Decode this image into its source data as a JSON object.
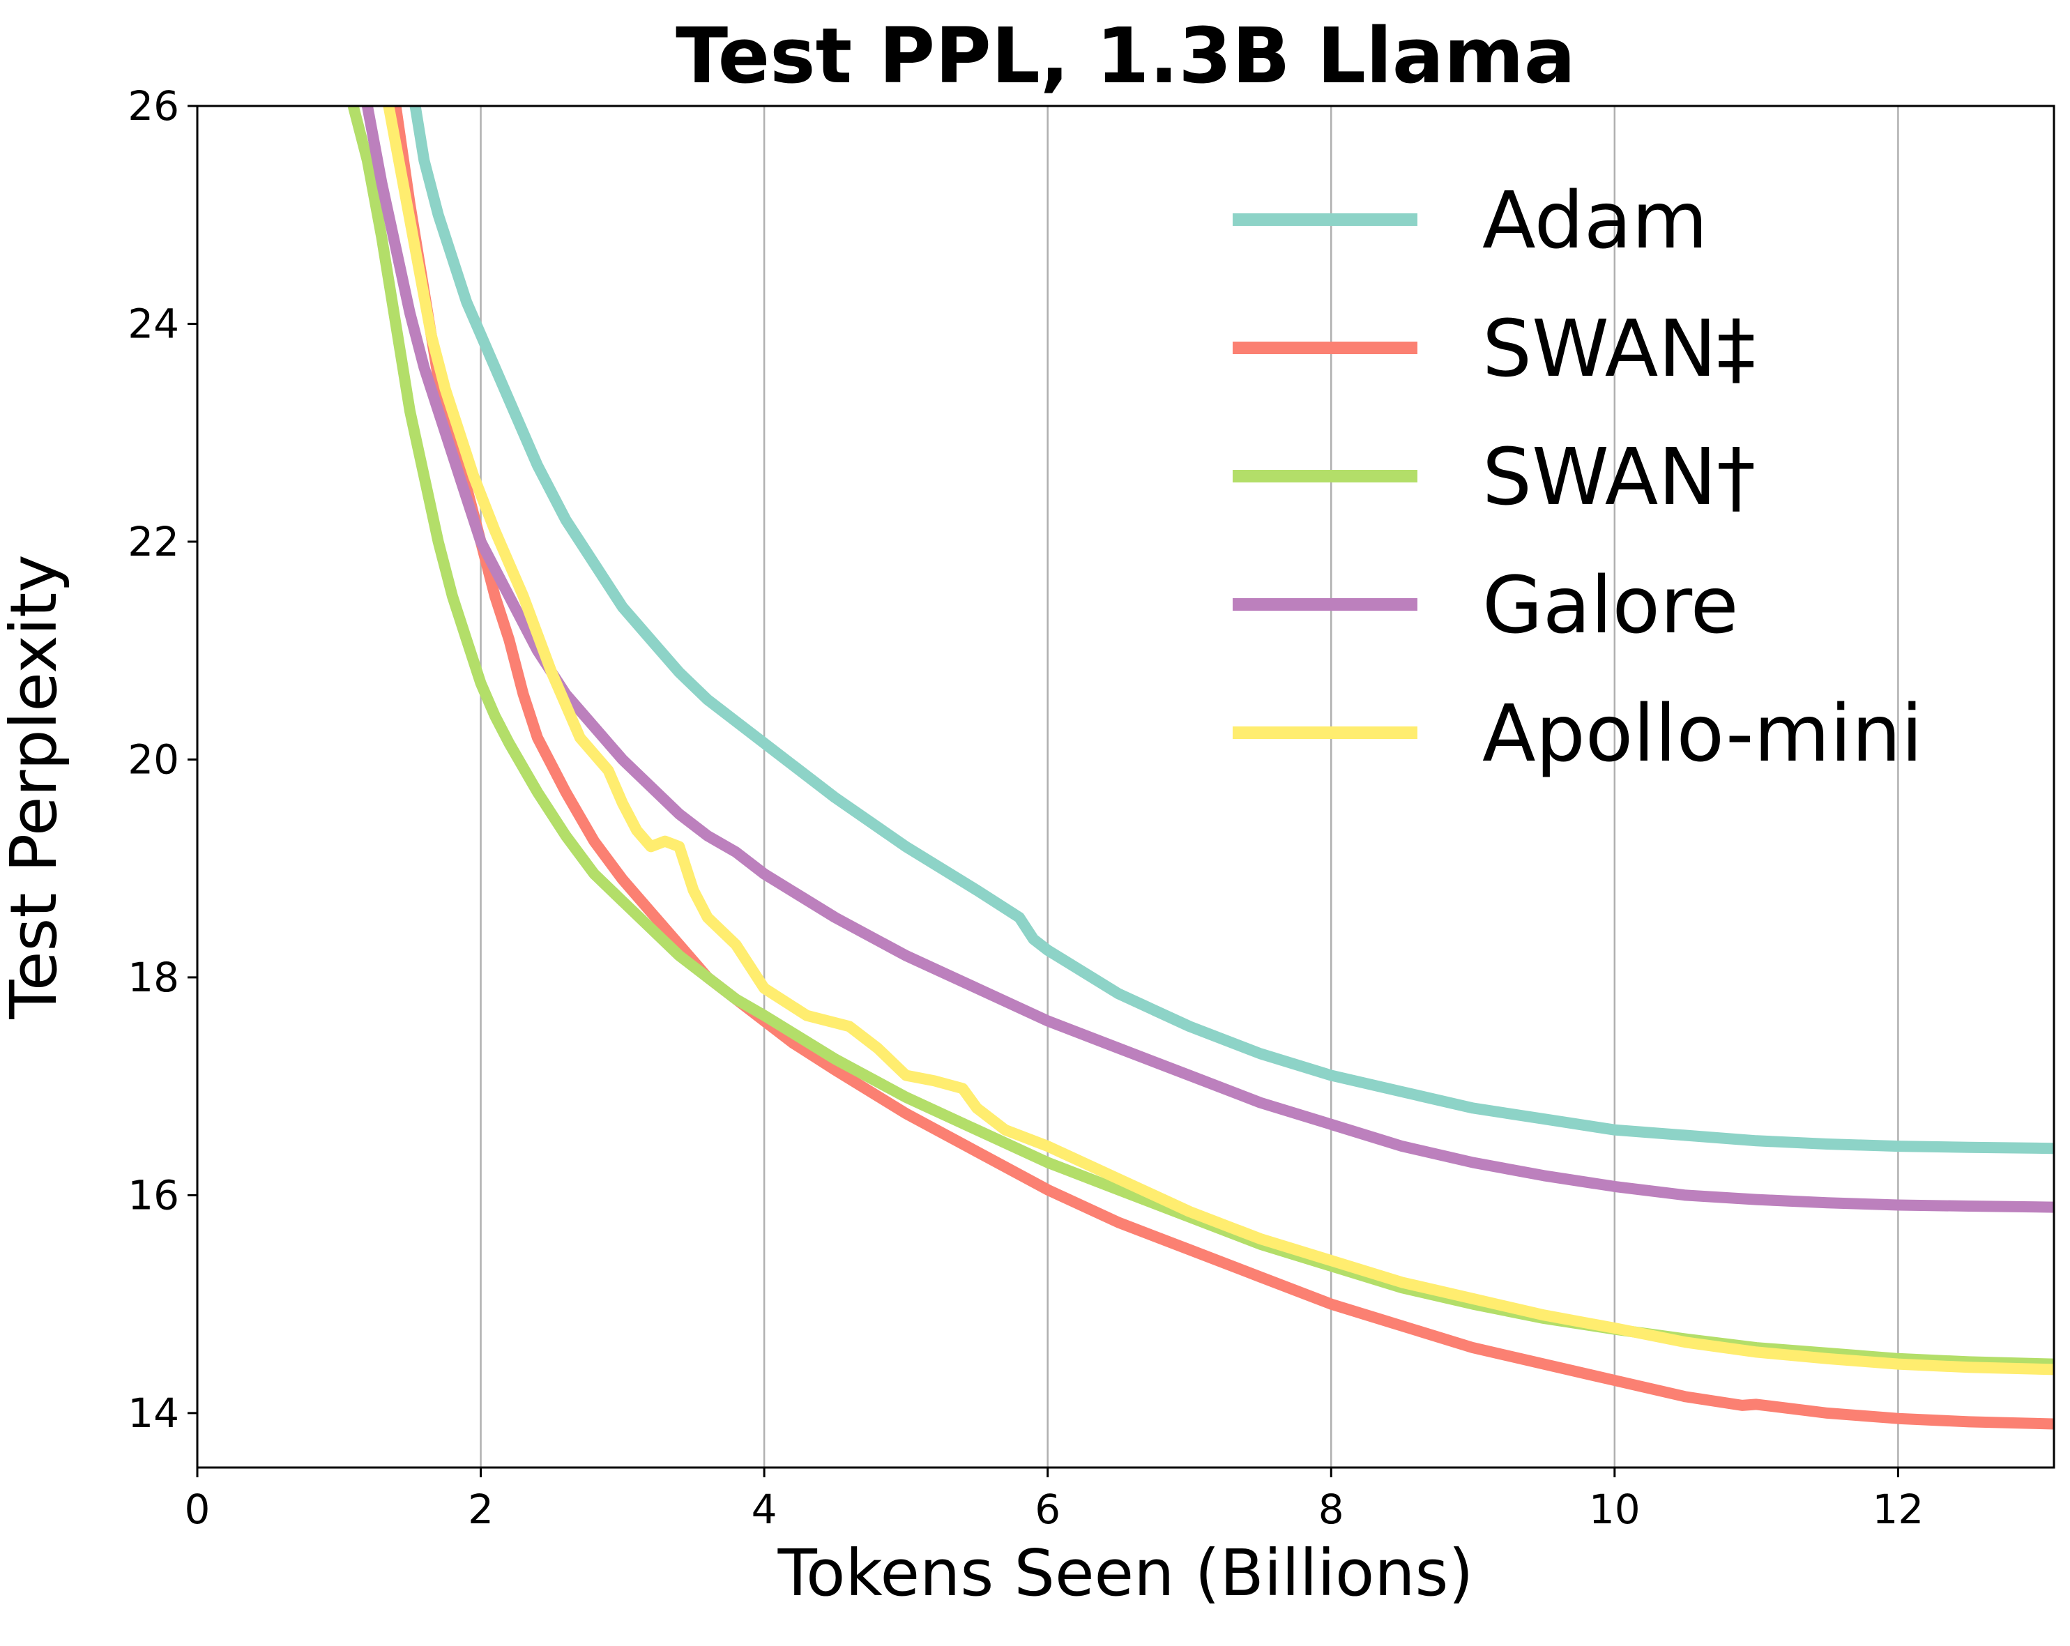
{
  "chart_data": {
    "type": "line",
    "title": "Test PPL, 1.3B Llama",
    "xlabel": "Tokens Seen (Billions)",
    "ylabel": "Test Perplexity",
    "xlim": [
      0,
      13.1
    ],
    "ylim": [
      13.5,
      26
    ],
    "xticks": [
      0,
      2,
      4,
      6,
      8,
      10,
      12
    ],
    "yticks": [
      14,
      16,
      18,
      20,
      22,
      24,
      26
    ],
    "grid": "vertical",
    "legend_position": "top-right",
    "series": [
      {
        "name": "Adam",
        "color": "#8dd3c7",
        "x": [
          1.5,
          1.6,
          1.7,
          1.8,
          1.9,
          2.0,
          2.2,
          2.4,
          2.6,
          2.8,
          3.0,
          3.2,
          3.4,
          3.6,
          3.8,
          4.0,
          4.5,
          5.0,
          5.5,
          5.8,
          5.85,
          5.9,
          6.0,
          6.5,
          7.0,
          7.5,
          8.0,
          8.5,
          9.0,
          9.5,
          10.0,
          10.5,
          11.0,
          11.5,
          12.0,
          12.5,
          13.1
        ],
        "values": [
          26.3,
          25.5,
          25.0,
          24.6,
          24.2,
          23.9,
          23.3,
          22.7,
          22.2,
          21.8,
          21.4,
          21.1,
          20.8,
          20.55,
          20.35,
          20.15,
          19.65,
          19.2,
          18.8,
          18.55,
          18.45,
          18.35,
          18.25,
          17.85,
          17.55,
          17.3,
          17.1,
          16.95,
          16.8,
          16.7,
          16.6,
          16.55,
          16.5,
          16.47,
          16.45,
          16.44,
          16.43
        ]
      },
      {
        "name": "SWAN‡",
        "color": "#fb8072",
        "x": [
          1.4,
          1.5,
          1.6,
          1.7,
          1.8,
          1.9,
          2.0,
          2.1,
          2.2,
          2.3,
          2.4,
          2.6,
          2.8,
          3.0,
          3.2,
          3.4,
          3.6,
          3.8,
          4.0,
          4.2,
          4.5,
          5.0,
          5.5,
          6.0,
          6.5,
          7.0,
          7.5,
          8.0,
          8.5,
          9.0,
          9.5,
          10.0,
          10.5,
          10.9,
          11.0,
          11.5,
          12.0,
          12.5,
          13.1
        ],
        "values": [
          26.0,
          25.1,
          24.3,
          23.5,
          23.0,
          22.5,
          22.0,
          21.5,
          21.1,
          20.6,
          20.2,
          19.7,
          19.25,
          18.9,
          18.6,
          18.3,
          18.0,
          17.8,
          17.6,
          17.4,
          17.15,
          16.75,
          16.4,
          16.05,
          15.75,
          15.5,
          15.25,
          15.0,
          14.8,
          14.6,
          14.45,
          14.3,
          14.15,
          14.07,
          14.08,
          14.0,
          13.95,
          13.92,
          13.9
        ]
      },
      {
        "name": "SWAN†",
        "color": "#b3de69",
        "x": [
          1.1,
          1.2,
          1.3,
          1.4,
          1.5,
          1.6,
          1.7,
          1.8,
          1.9,
          2.0,
          2.1,
          2.2,
          2.4,
          2.6,
          2.8,
          3.0,
          3.2,
          3.4,
          3.6,
          3.8,
          4.0,
          4.5,
          5.0,
          5.5,
          6.0,
          6.5,
          7.0,
          7.5,
          8.0,
          8.5,
          9.0,
          9.5,
          10.0,
          10.5,
          11.0,
          11.5,
          12.0,
          12.5,
          13.1
        ],
        "values": [
          26.0,
          25.5,
          24.8,
          24.0,
          23.2,
          22.6,
          22.0,
          21.5,
          21.1,
          20.7,
          20.4,
          20.15,
          19.7,
          19.3,
          18.95,
          18.7,
          18.45,
          18.2,
          18.0,
          17.8,
          17.65,
          17.25,
          16.9,
          16.6,
          16.3,
          16.05,
          15.8,
          15.55,
          15.35,
          15.15,
          15.0,
          14.87,
          14.77,
          14.68,
          14.6,
          14.55,
          14.5,
          14.47,
          14.45
        ]
      },
      {
        "name": "Galore",
        "color": "#bc80bd",
        "x": [
          1.2,
          1.3,
          1.4,
          1.5,
          1.6,
          1.7,
          1.8,
          1.9,
          2.0,
          2.2,
          2.4,
          2.6,
          2.8,
          3.0,
          3.2,
          3.4,
          3.6,
          3.8,
          4.0,
          4.5,
          5.0,
          5.5,
          6.0,
          6.5,
          7.0,
          7.5,
          8.0,
          8.5,
          9.0,
          9.5,
          10.0,
          10.5,
          11.0,
          11.5,
          12.0,
          12.5,
          13.1
        ],
        "values": [
          26.0,
          25.3,
          24.7,
          24.1,
          23.6,
          23.2,
          22.8,
          22.4,
          22.0,
          21.5,
          21.0,
          20.6,
          20.3,
          20.0,
          19.75,
          19.5,
          19.3,
          19.15,
          18.95,
          18.55,
          18.2,
          17.9,
          17.6,
          17.35,
          17.1,
          16.85,
          16.65,
          16.45,
          16.3,
          16.18,
          16.08,
          16.0,
          15.96,
          15.93,
          15.91,
          15.9,
          15.89
        ]
      },
      {
        "name": "Apollo-mini",
        "color": "#ffed6f",
        "x": [
          1.35,
          1.45,
          1.55,
          1.65,
          1.75,
          1.85,
          1.95,
          2.1,
          2.3,
          2.5,
          2.7,
          2.9,
          3.0,
          3.1,
          3.2,
          3.3,
          3.4,
          3.5,
          3.6,
          3.8,
          4.0,
          4.3,
          4.6,
          4.8,
          5.0,
          5.2,
          5.4,
          5.5,
          5.7,
          6.0,
          6.5,
          7.0,
          7.5,
          8.0,
          8.5,
          9.0,
          9.5,
          10.0,
          10.5,
          11.0,
          11.5,
          12.0,
          12.5,
          13.1
        ],
        "values": [
          26.0,
          25.3,
          24.6,
          23.9,
          23.4,
          23.0,
          22.6,
          22.1,
          21.5,
          20.8,
          20.2,
          19.9,
          19.6,
          19.35,
          19.2,
          19.25,
          19.2,
          18.8,
          18.55,
          18.3,
          17.9,
          17.65,
          17.55,
          17.35,
          17.1,
          17.05,
          16.98,
          16.8,
          16.6,
          16.45,
          16.15,
          15.85,
          15.6,
          15.4,
          15.2,
          15.05,
          14.9,
          14.78,
          14.65,
          14.56,
          14.5,
          14.45,
          14.42,
          14.4
        ]
      }
    ]
  }
}
